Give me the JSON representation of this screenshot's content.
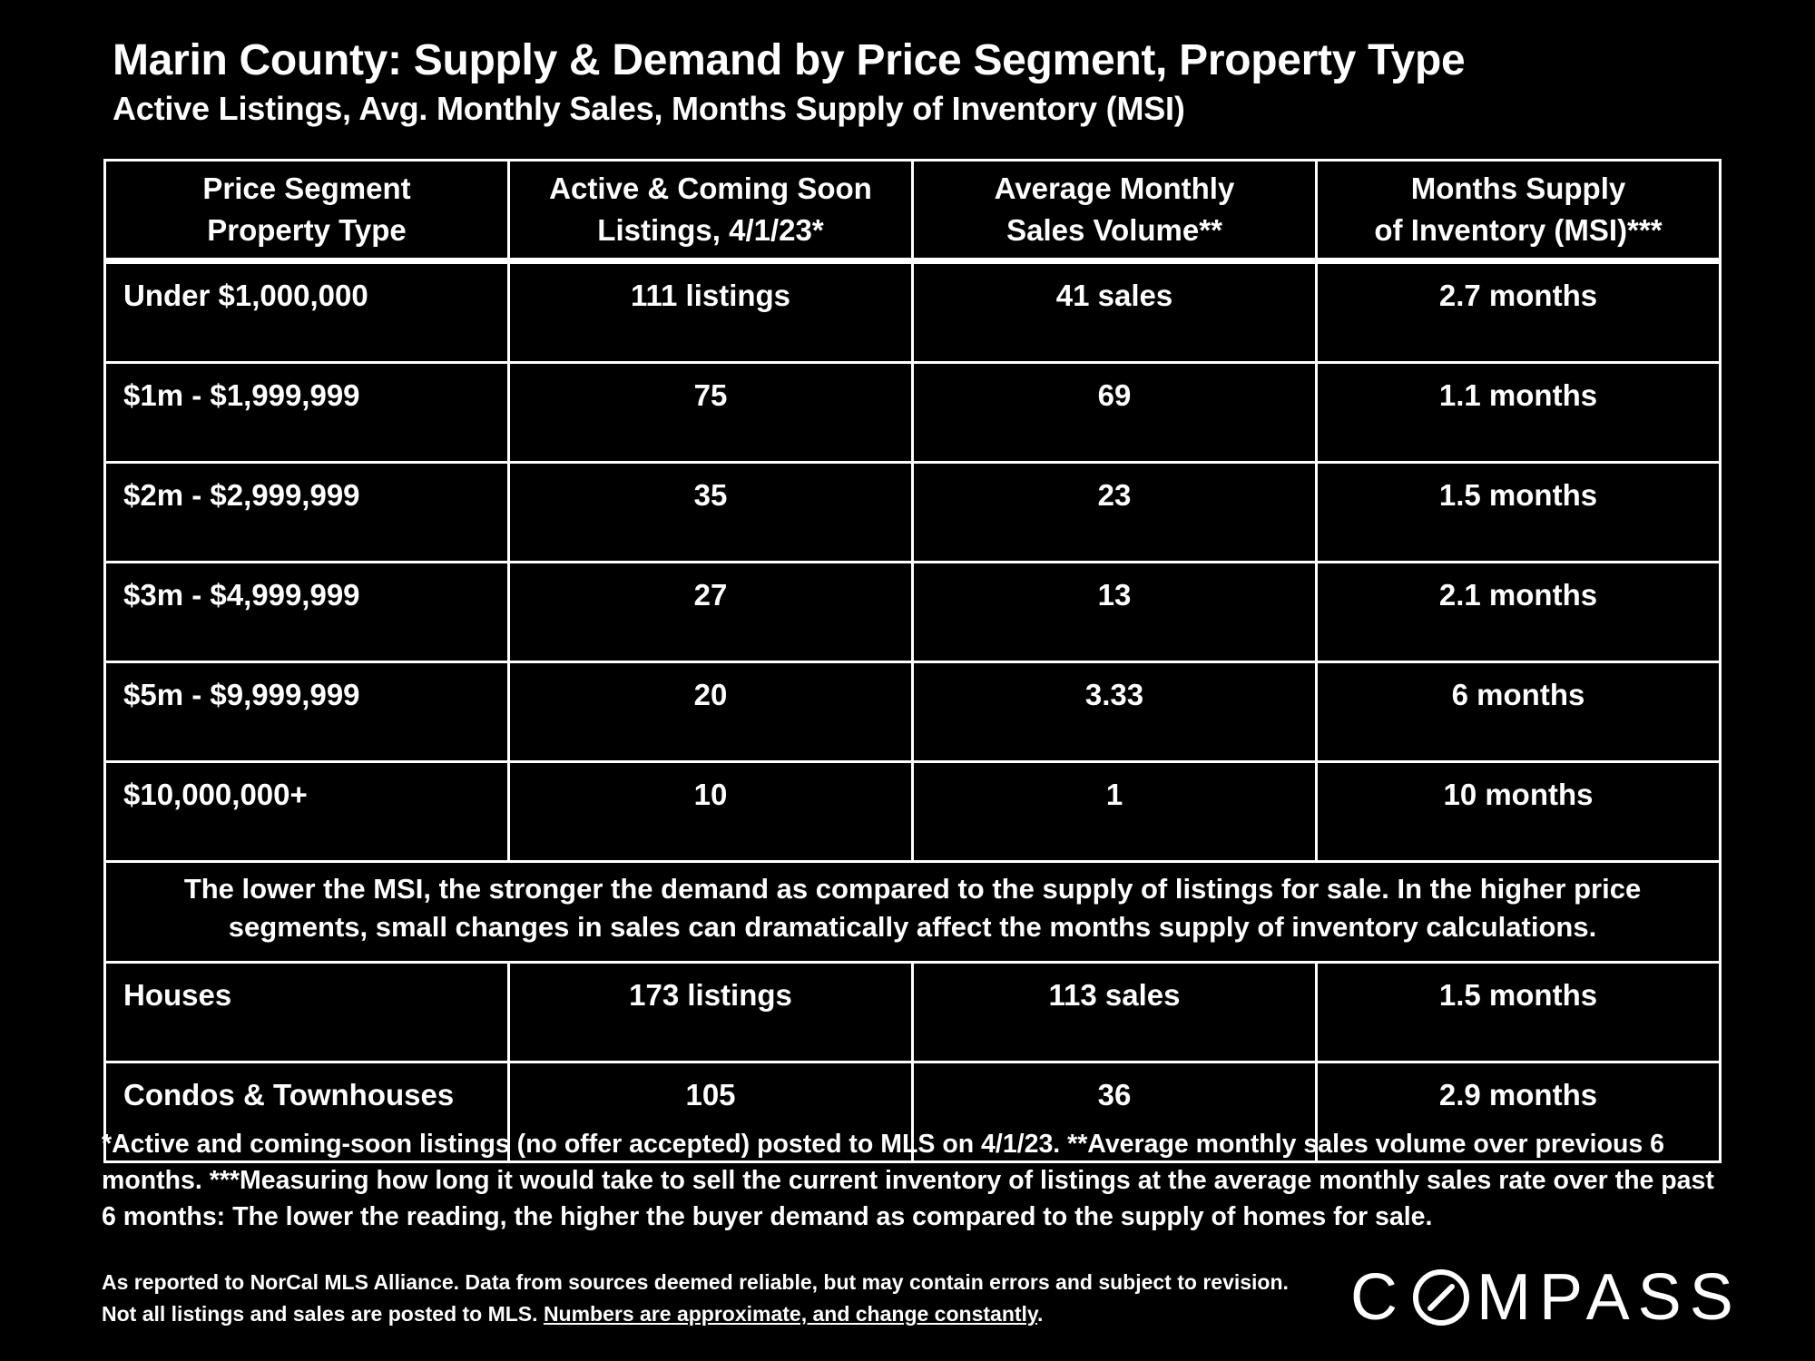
{
  "title": "Marin County: Supply & Demand by Price Segment, Property Type",
  "subtitle": "Active Listings, Avg. Monthly Sales, Months Supply of Inventory (MSI)",
  "table": {
    "headers": [
      {
        "line1": "Price Segment",
        "line2": "Property Type"
      },
      {
        "line1": "Active & Coming Soon",
        "line2": "Listings, 4/1/23*"
      },
      {
        "line1": "Average Monthly",
        "line2": "Sales Volume**"
      },
      {
        "line1": "Months Supply",
        "line2": "of Inventory (MSI)***"
      }
    ],
    "price_rows": [
      {
        "segment": "Under $1,000,000",
        "listings": "111 listings",
        "sales": "41 sales",
        "msi": "2.7 months"
      },
      {
        "segment": "$1m - $1,999,999",
        "listings": "75",
        "sales": "69",
        "msi": "1.1 months"
      },
      {
        "segment": "$2m - $2,999,999",
        "listings": "35",
        "sales": "23",
        "msi": "1.5 months"
      },
      {
        "segment": "$3m - $4,999,999",
        "listings": "27",
        "sales": "13",
        "msi": "2.1 months"
      },
      {
        "segment": "$5m - $9,999,999",
        "listings": "20",
        "sales": "3.33",
        "msi": "6 months"
      },
      {
        "segment": "$10,000,000+",
        "listings": "10",
        "sales": "1",
        "msi": "10 months"
      }
    ],
    "note": "The lower the MSI, the stronger the demand as compared to the supply of listings for sale. In the higher price segments, small changes in sales can dramatically affect the months supply of inventory calculations.",
    "type_rows": [
      {
        "segment": "Houses",
        "listings": "173 listings",
        "sales": "113 sales",
        "msi": "1.5 months"
      },
      {
        "segment": "Condos & Townhouses",
        "listings": "105",
        "sales": "36",
        "msi": "2.9 months"
      }
    ]
  },
  "footnote": "*Active and coming-soon listings (no offer accepted) posted to MLS on 4/1/23. **Average monthly sales volume over previous 6 months. ***Measuring how long it would take to sell the current inventory of listings at the average monthly sales rate over the past 6 months:  The lower the reading, the higher the buyer demand as compared to the supply of homes for sale.",
  "source": {
    "text": "As reported to NorCal MLS Alliance.  Data from sources deemed reliable, but may contain errors and subject to revision.  Not all listings and sales are posted to MLS. ",
    "underlined": "Numbers are approximate, and change constantly",
    "end": "."
  },
  "logo": {
    "before": "C",
    "after": "MPASS",
    "mark": "compass-logo-o-icon"
  }
}
